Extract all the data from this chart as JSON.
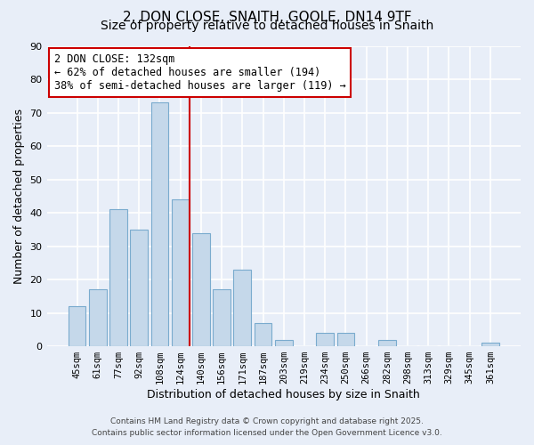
{
  "title": "2, DON CLOSE, SNAITH, GOOLE, DN14 9TF",
  "subtitle": "Size of property relative to detached houses in Snaith",
  "xlabel": "Distribution of detached houses by size in Snaith",
  "ylabel": "Number of detached properties",
  "bar_labels": [
    "45sqm",
    "61sqm",
    "77sqm",
    "92sqm",
    "108sqm",
    "124sqm",
    "140sqm",
    "156sqm",
    "171sqm",
    "187sqm",
    "203sqm",
    "219sqm",
    "234sqm",
    "250sqm",
    "266sqm",
    "282sqm",
    "298sqm",
    "313sqm",
    "329sqm",
    "345sqm",
    "361sqm"
  ],
  "bar_values": [
    12,
    17,
    41,
    35,
    73,
    44,
    34,
    17,
    23,
    7,
    2,
    0,
    4,
    4,
    0,
    2,
    0,
    0,
    0,
    0,
    1
  ],
  "bar_color": "#c5d8ea",
  "bar_edge_color": "#7aabce",
  "vline_color": "#cc0000",
  "ann_line1": "2 DON CLOSE: 132sqm",
  "ann_line2": "← 62% of detached houses are smaller (194)",
  "ann_line3": "38% of semi-detached houses are larger (119) →",
  "ylim": [
    0,
    90
  ],
  "yticks": [
    0,
    10,
    20,
    30,
    40,
    50,
    60,
    70,
    80,
    90
  ],
  "background_color": "#e8eef8",
  "plot_bg_color": "#e8eef8",
  "grid_color": "#ffffff",
  "footer_line1": "Contains HM Land Registry data © Crown copyright and database right 2025.",
  "footer_line2": "Contains public sector information licensed under the Open Government Licence v3.0.",
  "title_fontsize": 11,
  "subtitle_fontsize": 10,
  "axis_label_fontsize": 9,
  "tick_fontsize": 7.5,
  "annotation_fontsize": 8.5,
  "footer_fontsize": 6.5
}
